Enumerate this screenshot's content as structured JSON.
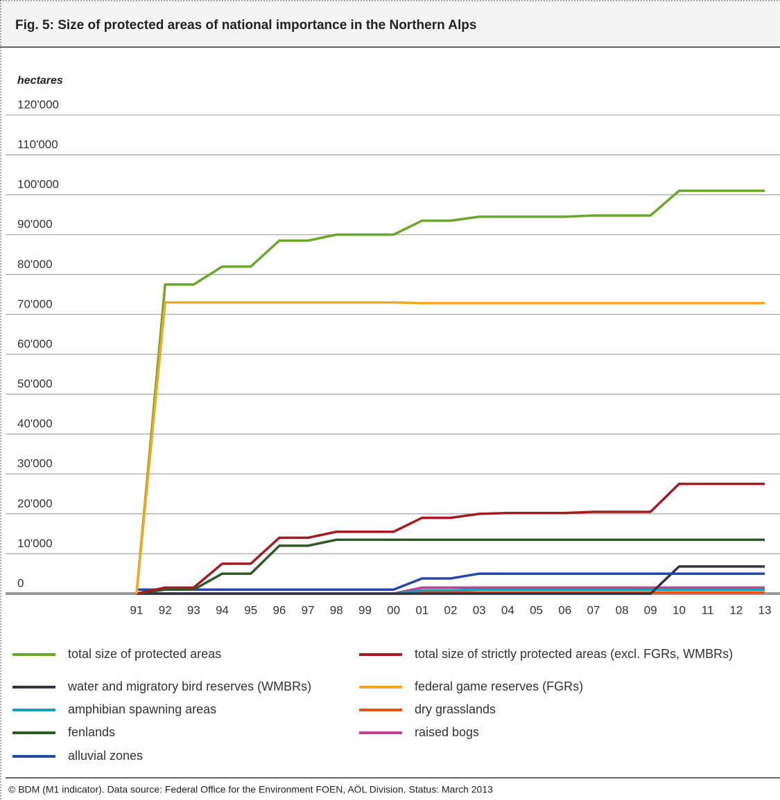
{
  "chart_data": {
    "type": "line",
    "title": "Fig. 5: Size of protected areas of national importance in the Northern Alps",
    "y_label": "hectares",
    "footer": "© BDM (M1 indicator). Data source: Federal Office for the Environment FOEN, AÖL Division. Status: March 2013",
    "categories": [
      "91",
      "92",
      "93",
      "94",
      "95",
      "96",
      "97",
      "98",
      "99",
      "00",
      "01",
      "02",
      "03",
      "04",
      "05",
      "06",
      "07",
      "08",
      "09",
      "10",
      "11",
      "12",
      "13"
    ],
    "ylim": [
      0,
      120000
    ],
    "yticks": [
      0,
      {
        "value": 10000,
        "label": "10'000"
      },
      {
        "value": 20000,
        "label": "20'000"
      },
      {
        "value": 30000,
        "label": "30'000"
      },
      {
        "value": 40000,
        "label": "40'000"
      },
      {
        "value": 50000,
        "label": "50'000"
      },
      {
        "value": 60000,
        "label": "60'000"
      },
      {
        "value": 70000,
        "label": "70'000"
      },
      {
        "value": 80000,
        "label": "80'000"
      },
      {
        "value": 90000,
        "label": "90'000"
      },
      {
        "value": 100000,
        "label": "100'000"
      },
      {
        "value": 110000,
        "label": "110'000"
      },
      {
        "value": 120000,
        "label": "120'000"
      }
    ],
    "grid": true,
    "series": [
      {
        "name": "total size of protected areas",
        "color": "#6aa82a",
        "values": [
          0,
          77500,
          77500,
          82000,
          82000,
          88500,
          88500,
          90000,
          90000,
          90000,
          93500,
          93500,
          94500,
          94500,
          94500,
          94500,
          94800,
          94800,
          94800,
          101000,
          101000,
          101000,
          101000
        ]
      },
      {
        "name": "total size of strictly protected areas (excl. FGRs, WMBRs)",
        "color": "#a01c22",
        "values": [
          0,
          1500,
          1500,
          7500,
          7500,
          14000,
          14000,
          15500,
          15500,
          15500,
          19000,
          19000,
          20000,
          20200,
          20200,
          20200,
          20500,
          20500,
          20500,
          27500,
          27500,
          27500,
          27500
        ]
      },
      {
        "name": "water and migratory bird reserves (WMBRs)",
        "color": "#333342",
        "values": [
          0,
          0,
          0,
          0,
          0,
          0,
          0,
          0,
          0,
          0,
          0,
          0,
          0,
          0,
          0,
          0,
          0,
          0,
          0,
          6800,
          6800,
          6800,
          6800
        ]
      },
      {
        "name": "federal game reserves (FGRs)",
        "color": "#f5a623",
        "values": [
          0,
          73000,
          73000,
          73000,
          73000,
          73000,
          73000,
          73000,
          73000,
          73000,
          72800,
          72800,
          72800,
          72800,
          72800,
          72800,
          72800,
          72800,
          72800,
          72800,
          72800,
          72800,
          72800
        ]
      },
      {
        "name": "amphibian spawning areas",
        "color": "#1a9fb5",
        "values": [
          0,
          0,
          0,
          0,
          0,
          0,
          0,
          0,
          0,
          0,
          800,
          800,
          1000,
          1000,
          1000,
          1000,
          1000,
          1000,
          1000,
          1000,
          1000,
          1000,
          1000
        ]
      },
      {
        "name": "dry grasslands",
        "color": "#e8501c",
        "values": [
          0,
          0,
          0,
          0,
          0,
          0,
          0,
          0,
          0,
          0,
          300,
          300,
          300,
          300,
          300,
          300,
          300,
          300,
          300,
          300,
          300,
          300,
          300
        ]
      },
      {
        "name": "fenlands",
        "color": "#2e5a24",
        "values": [
          0,
          1000,
          1000,
          5000,
          5000,
          12000,
          12000,
          13500,
          13500,
          13500,
          13500,
          13500,
          13500,
          13500,
          13500,
          13500,
          13500,
          13500,
          13500,
          13500,
          13500,
          13500,
          13500
        ]
      },
      {
        "name": "raised bogs",
        "color": "#c0408f",
        "values": [
          0,
          0,
          0,
          0,
          0,
          0,
          0,
          0,
          0,
          0,
          1500,
          1500,
          1500,
          1500,
          1500,
          1500,
          1500,
          1500,
          1500,
          1500,
          1500,
          1500,
          1500
        ]
      },
      {
        "name": "alluvial zones",
        "color": "#2448a8",
        "values": [
          1000,
          1000,
          1000,
          1000,
          1000,
          1000,
          1000,
          1000,
          1000,
          1000,
          3800,
          3800,
          5000,
          5000,
          5000,
          5000,
          5000,
          5000,
          5000,
          5000,
          5000,
          5000,
          5000
        ]
      }
    ]
  }
}
